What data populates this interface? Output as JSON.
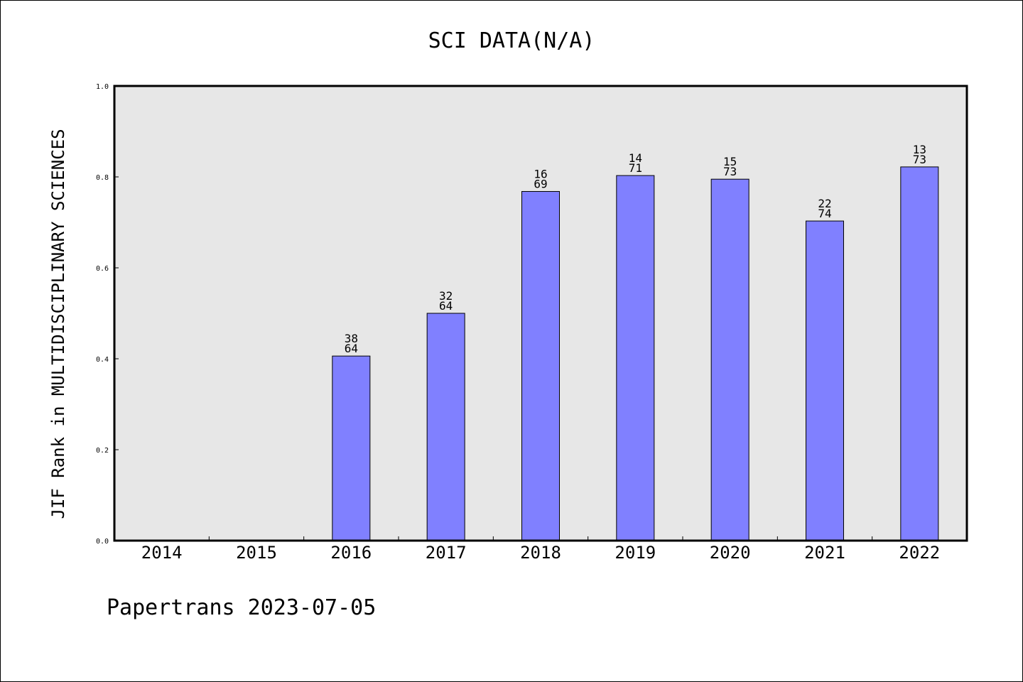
{
  "chart_data": {
    "type": "bar",
    "title": "SCI DATA(N/A)",
    "xlabel": "",
    "ylabel": "JIF Rank in MULTIDISCIPLINARY SCIENCES",
    "ylim": [
      0,
      1.0
    ],
    "yticks": [
      "0.0",
      "0.2",
      "0.4",
      "0.6",
      "0.8",
      "1.0"
    ],
    "categories": [
      "2014",
      "2015",
      "2016",
      "2017",
      "2018",
      "2019",
      "2020",
      "2021",
      "2022"
    ],
    "values": [
      null,
      null,
      0.406,
      0.5,
      0.768,
      0.803,
      0.795,
      0.703,
      0.822
    ],
    "data_labels": [
      null,
      null,
      [
        "38",
        "64"
      ],
      [
        "32",
        "64"
      ],
      [
        "16",
        "69"
      ],
      [
        "14",
        "71"
      ],
      [
        "15",
        "73"
      ],
      [
        "22",
        "74"
      ],
      [
        "13",
        "73"
      ]
    ],
    "grid": false,
    "colors": {
      "bar_fill": "#8080ff",
      "plot_background": "#e7e7e7",
      "bar_stroke": "#000000"
    }
  },
  "footer": {
    "text": "Papertrans 2023-07-05"
  }
}
